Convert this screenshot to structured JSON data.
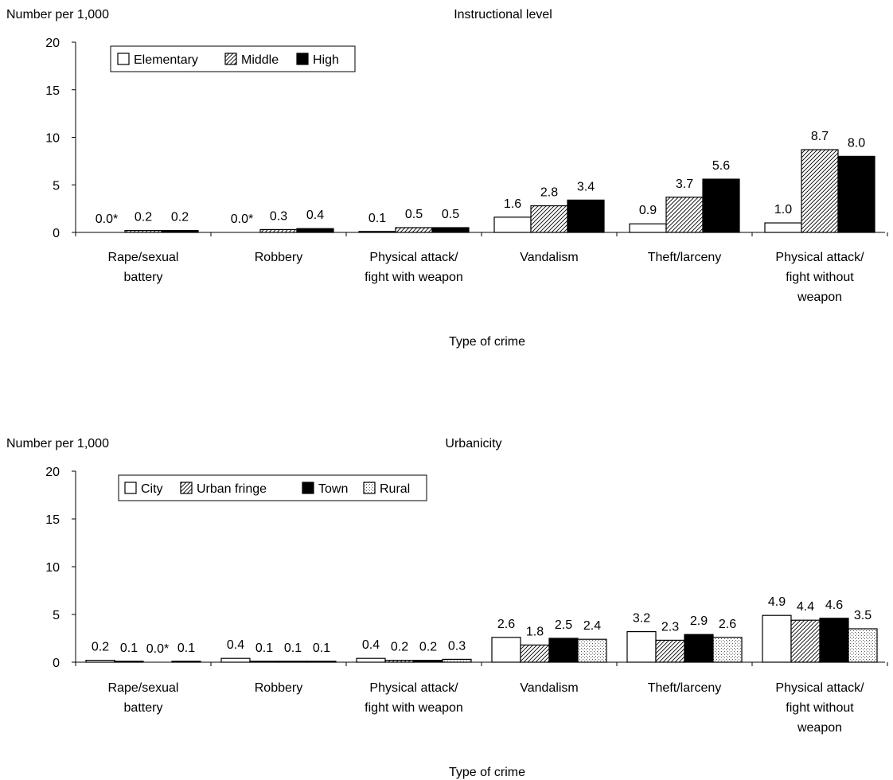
{
  "chart_data": [
    {
      "type": "bar",
      "title": "Instructional level",
      "ylabel": "Number per 1,000",
      "xlabel": "Type of crime",
      "ylim": [
        0,
        20
      ],
      "yticks": [
        "0",
        "5",
        "10",
        "15",
        "20"
      ],
      "grid": false,
      "legend_placement": "top-left",
      "categories": [
        [
          "Rape/sexual",
          "battery"
        ],
        [
          "Robbery"
        ],
        [
          "Physical attack/",
          "fight with weapon"
        ],
        [
          "Vandalism"
        ],
        [
          "Theft/larceny"
        ],
        [
          "Physical attack/",
          "fight without",
          "weapon"
        ]
      ],
      "series": [
        {
          "name": "Elementary",
          "pattern": "white",
          "values": [
            0.0,
            0.0,
            0.1,
            1.6,
            0.9,
            1.0
          ],
          "labels": [
            "0.0*",
            "0.0*",
            "0.1",
            "1.6",
            "0.9",
            "1.0"
          ]
        },
        {
          "name": "Middle",
          "pattern": "hatch",
          "values": [
            0.2,
            0.3,
            0.5,
            2.8,
            3.7,
            8.7
          ],
          "labels": [
            "0.2",
            "0.3",
            "0.5",
            "2.8",
            "3.7",
            "8.7"
          ]
        },
        {
          "name": "High",
          "pattern": "black",
          "values": [
            0.2,
            0.4,
            0.5,
            3.4,
            5.6,
            8.0
          ],
          "labels": [
            "0.2",
            "0.4",
            "0.5",
            "3.4",
            "5.6",
            "8.0"
          ]
        }
      ]
    },
    {
      "type": "bar",
      "title": "Urbanicity",
      "ylabel": "Number per 1,000",
      "xlabel": "Type of crime",
      "ylim": [
        0,
        20
      ],
      "yticks": [
        "0",
        "5",
        "10",
        "15",
        "20"
      ],
      "grid": false,
      "legend_placement": "top-left",
      "categories": [
        [
          "Rape/sexual",
          "battery"
        ],
        [
          "Robbery"
        ],
        [
          "Physical attack/",
          "fight with weapon"
        ],
        [
          "Vandalism"
        ],
        [
          "Theft/larceny"
        ],
        [
          "Physical attack/",
          "fight without",
          "weapon"
        ]
      ],
      "series": [
        {
          "name": "City",
          "pattern": "white",
          "values": [
            0.2,
            0.4,
            0.4,
            2.6,
            3.2,
            4.9
          ],
          "labels": [
            "0.2",
            "0.4",
            "0.4",
            "2.6",
            "3.2",
            "4.9"
          ]
        },
        {
          "name": "Urban fringe",
          "pattern": "hatch",
          "values": [
            0.1,
            0.1,
            0.2,
            1.8,
            2.3,
            4.4
          ],
          "labels": [
            "0.1",
            "0.1",
            "0.2",
            "1.8",
            "2.3",
            "4.4"
          ]
        },
        {
          "name": "Town",
          "pattern": "black",
          "values": [
            0.0,
            0.1,
            0.2,
            2.5,
            2.9,
            4.6
          ],
          "labels": [
            "0.0*",
            "0.1",
            "0.2",
            "2.5",
            "2.9",
            "4.6"
          ]
        },
        {
          "name": "Rural",
          "pattern": "dots",
          "values": [
            0.1,
            0.1,
            0.3,
            2.4,
            2.6,
            3.5
          ],
          "labels": [
            "0.1",
            "0.1",
            "0.3",
            "2.4",
            "2.6",
            "3.5"
          ]
        }
      ]
    }
  ],
  "colors": {
    "axis": "#000000",
    "bar_stroke": "#000000",
    "black_fill": "#000000",
    "white_fill": "#ffffff"
  }
}
